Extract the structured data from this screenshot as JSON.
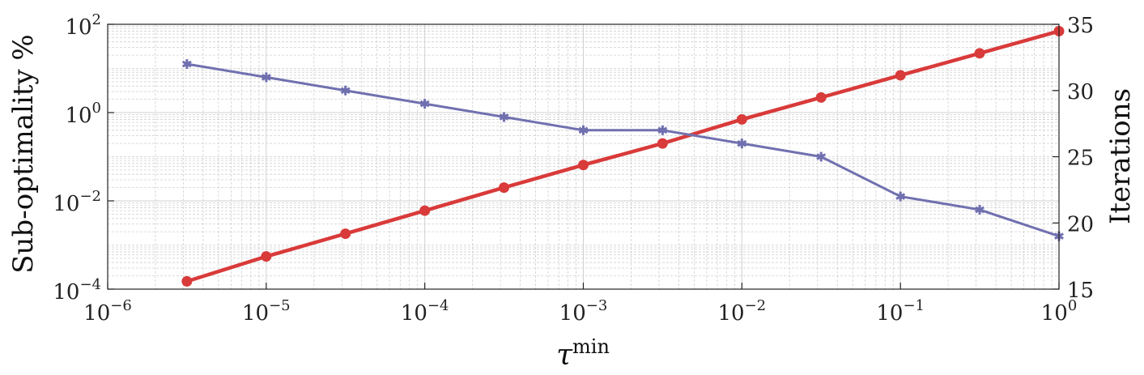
{
  "chart_data": {
    "type": "line",
    "x_scale": "log",
    "y_left_scale": "log",
    "y_right_scale": "linear",
    "xlim": [
      1e-06,
      1
    ],
    "ylim_left": [
      0.0001,
      100
    ],
    "ylim_right": [
      15,
      35
    ],
    "xlabel": {
      "base": "τ",
      "sup": "min"
    },
    "ylabel_left": "Sub-optimality %",
    "ylabel_right": "Iterations",
    "grid": true,
    "x_ticks": [
      {
        "value": 1e-06,
        "base": "10",
        "exp": "−6"
      },
      {
        "value": 1e-05,
        "base": "10",
        "exp": "−5"
      },
      {
        "value": 0.0001,
        "base": "10",
        "exp": "−4"
      },
      {
        "value": 0.001,
        "base": "10",
        "exp": "−3"
      },
      {
        "value": 0.01,
        "base": "10",
        "exp": "−2"
      },
      {
        "value": 0.1,
        "base": "10",
        "exp": "−1"
      },
      {
        "value": 1,
        "base": "10",
        "exp": "0"
      }
    ],
    "y_left_ticks": [
      {
        "value": 0.0001,
        "base": "10",
        "exp": "−4"
      },
      {
        "value": 0.01,
        "base": "10",
        "exp": "−2"
      },
      {
        "value": 1,
        "base": "10",
        "exp": "0"
      },
      {
        "value": 100,
        "base": "10",
        "exp": "2"
      }
    ],
    "y_right_ticks": [
      {
        "value": 15,
        "label": "15"
      },
      {
        "value": 20,
        "label": "20"
      },
      {
        "value": 25,
        "label": "25"
      },
      {
        "value": 30,
        "label": "30"
      },
      {
        "value": 35,
        "label": "35"
      }
    ],
    "series": [
      {
        "axis": "left",
        "color": "#d93a3a",
        "marker": "circle",
        "x": [
          3.16e-06,
          1e-05,
          3.16e-05,
          0.0001,
          0.000316,
          0.001,
          0.00316,
          0.01,
          0.0316,
          0.1,
          0.316,
          1
        ],
        "y": [
          0.00015,
          0.00055,
          0.0018,
          0.006,
          0.02,
          0.065,
          0.2,
          0.7,
          2.2,
          7,
          22,
          70
        ]
      },
      {
        "axis": "right",
        "color": "#7070b0",
        "marker": "asterisk",
        "x": [
          3.16e-06,
          1e-05,
          3.16e-05,
          0.0001,
          0.000316,
          0.001,
          0.00316,
          0.01,
          0.0316,
          0.1,
          0.316,
          1
        ],
        "y": [
          32,
          31,
          30,
          29,
          28,
          27,
          27,
          26,
          25,
          22,
          21,
          19
        ]
      }
    ]
  }
}
